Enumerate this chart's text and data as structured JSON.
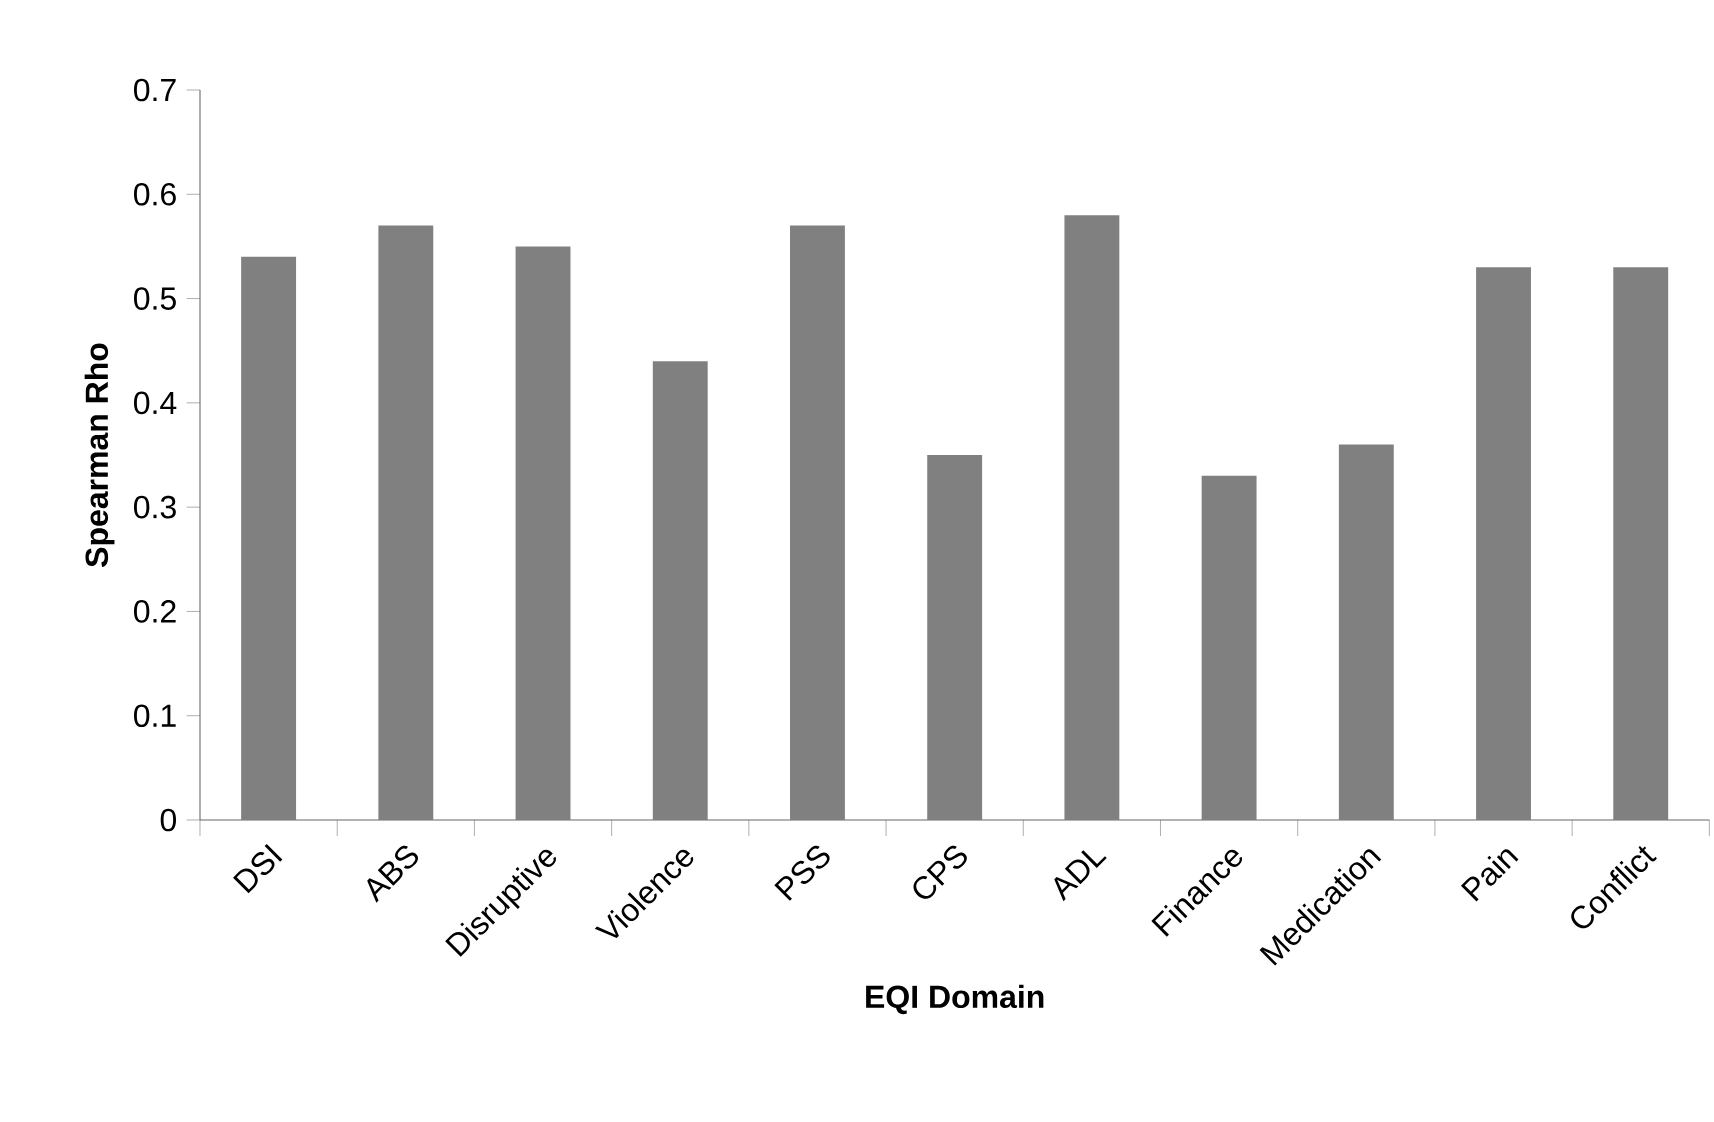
{
  "chart_data": {
    "type": "bar",
    "xlabel": "EQI Domain",
    "ylabel": "Spearman Rho",
    "categories": [
      "DSI",
      "ABS",
      "Disruptive",
      "Violence",
      "PSS",
      "CPS",
      "ADL",
      "Finance",
      "Medication",
      "Pain",
      "Conflict"
    ],
    "values": [
      0.54,
      0.57,
      0.55,
      0.44,
      0.57,
      0.35,
      0.58,
      0.33,
      0.36,
      0.53,
      0.53
    ],
    "color": "#808080",
    "ylim": [
      0,
      0.7
    ],
    "yticks": [
      0,
      0.1,
      0.2,
      0.3,
      0.4,
      0.5,
      0.6,
      0.7
    ]
  }
}
